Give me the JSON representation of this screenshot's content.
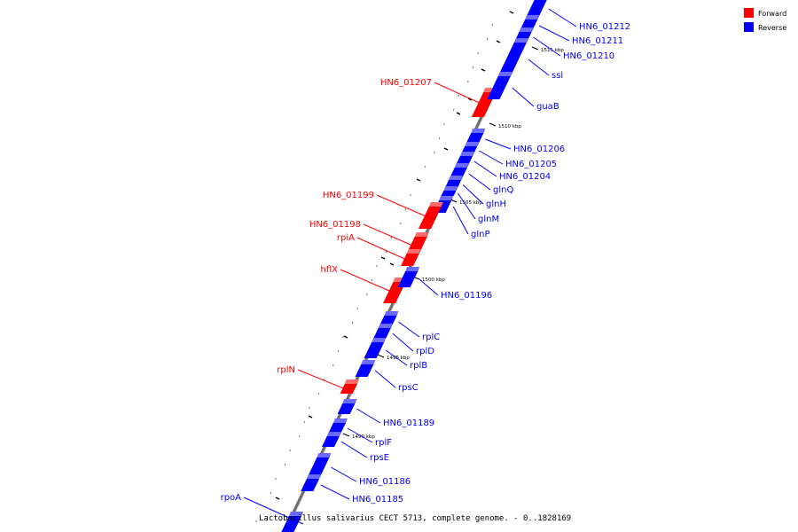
{
  "legend": {
    "forward_label": "Forward",
    "reverse_label": "Reverse",
    "forward_color": "#ff0000",
    "reverse_color": "#0000ff"
  },
  "caption": "Lactobacillus salivarius CECT 5713, complete genome. - 0..1828169",
  "ticks": [
    {
      "label": "1515 kbp"
    },
    {
      "label": "1510 kbp"
    },
    {
      "label": "1505 kbp"
    },
    {
      "label": "1500 kbp"
    },
    {
      "label": "1495 kbp"
    },
    {
      "label": "1490 kbp"
    }
  ],
  "genes": [
    {
      "name": "HN6_01212",
      "strand": "reverse"
    },
    {
      "name": "HN6_01211",
      "strand": "reverse"
    },
    {
      "name": "HN6_01210",
      "strand": "reverse"
    },
    {
      "name": "ssl",
      "strand": "reverse"
    },
    {
      "name": "HN6_01207",
      "strand": "forward"
    },
    {
      "name": "guaB",
      "strand": "reverse"
    },
    {
      "name": "HN6_01206",
      "strand": "reverse"
    },
    {
      "name": "HN6_01205",
      "strand": "reverse"
    },
    {
      "name": "HN6_01204",
      "strand": "reverse"
    },
    {
      "name": "glnQ",
      "strand": "reverse"
    },
    {
      "name": "glnH",
      "strand": "reverse"
    },
    {
      "name": "glnM",
      "strand": "reverse"
    },
    {
      "name": "glnP",
      "strand": "reverse"
    },
    {
      "name": "HN6_01199",
      "strand": "forward"
    },
    {
      "name": "HN6_01198",
      "strand": "forward"
    },
    {
      "name": "rpiA",
      "strand": "forward"
    },
    {
      "name": "hflX",
      "strand": "forward"
    },
    {
      "name": "HN6_01196",
      "strand": "reverse"
    },
    {
      "name": "rplC",
      "strand": "reverse"
    },
    {
      "name": "rplD",
      "strand": "reverse"
    },
    {
      "name": "rplB",
      "strand": "reverse"
    },
    {
      "name": "rplN",
      "strand": "forward"
    },
    {
      "name": "rpsC",
      "strand": "reverse"
    },
    {
      "name": "HN6_01189",
      "strand": "reverse"
    },
    {
      "name": "rplF",
      "strand": "reverse"
    },
    {
      "name": "rpsE",
      "strand": "reverse"
    },
    {
      "name": "HN6_01186",
      "strand": "reverse"
    },
    {
      "name": "HN6_01185",
      "strand": "reverse"
    },
    {
      "name": "rpoA",
      "strand": "reverse"
    }
  ]
}
